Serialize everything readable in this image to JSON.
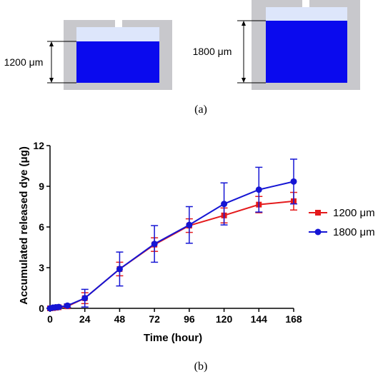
{
  "panel_a": {
    "caption": "(a)",
    "left_label": "1200 μm",
    "right_label": "1800 μm",
    "colors": {
      "housing": "#c8c8cc",
      "dye": "#0a0aee",
      "cap": "#dde6fb"
    }
  },
  "panel_b": {
    "caption": "(b)"
  },
  "chart_data": {
    "type": "line",
    "title": "",
    "xlabel": "Time (hour)",
    "ylabel": "Accumulated released dye (μg)",
    "xlim": [
      0,
      168
    ],
    "ylim": [
      0,
      12
    ],
    "xticks": [
      0,
      24,
      48,
      72,
      96,
      120,
      144,
      168
    ],
    "yticks": [
      0,
      3,
      6,
      9,
      12
    ],
    "x_tick_labels": [
      "0",
      "24",
      "48",
      "72",
      "96",
      "120",
      "144",
      "168"
    ],
    "y_tick_labels": [
      "0",
      "3",
      "6",
      "9",
      "12"
    ],
    "legend_position": "right",
    "grid": false,
    "x": [
      0,
      2,
      4,
      6,
      12,
      24,
      48,
      72,
      96,
      120,
      144,
      168
    ],
    "series": [
      {
        "name": "1200 μm",
        "color": "#e41a1c",
        "marker": "square",
        "values": [
          0,
          0.02,
          0.05,
          0.08,
          0.15,
          0.75,
          2.9,
          4.7,
          6.1,
          6.85,
          7.65,
          7.9
        ],
        "errors": [
          0,
          0.02,
          0.03,
          0.05,
          0.1,
          0.4,
          0.5,
          0.5,
          0.5,
          0.55,
          0.6,
          0.65
        ]
      },
      {
        "name": "1800 μm",
        "color": "#1515d4",
        "marker": "circle",
        "values": [
          0,
          0.05,
          0.08,
          0.1,
          0.2,
          0.75,
          2.9,
          4.75,
          6.15,
          7.7,
          8.75,
          9.35
        ],
        "errors": [
          0,
          0.05,
          0.05,
          0.08,
          0.12,
          0.65,
          1.25,
          1.35,
          1.35,
          1.55,
          1.65,
          1.65
        ]
      }
    ]
  }
}
